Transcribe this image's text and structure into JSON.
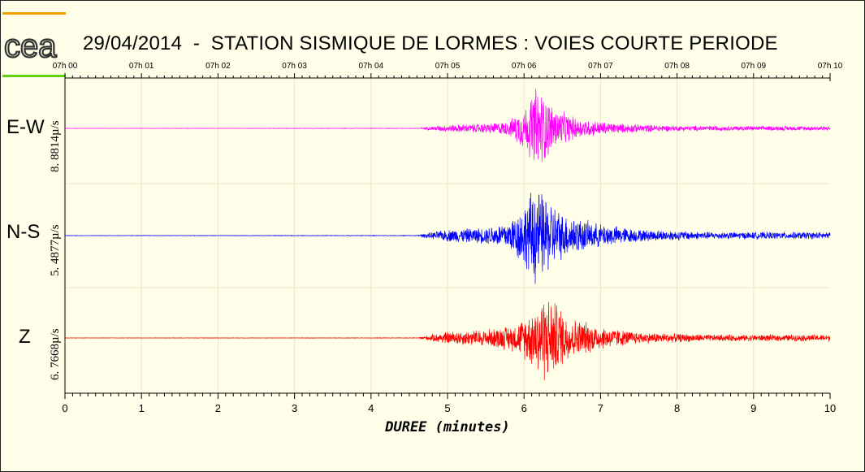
{
  "title": "29/04/2014  -  STATION SISMIQUE DE LORMES : VOIES COURTE PERIODE",
  "logo_text": "cea",
  "colors": {
    "background": "#fffee8",
    "logo_orange": "#f0a000",
    "logo_green": "#60d010",
    "grid": "#e8e8c8"
  },
  "chart_data": {
    "type": "line",
    "title": "29/04/2014  -  STATION SISMIQUE DE LORMES : VOIES COURTE PERIODE",
    "xlabel": "DUREE  (minutes)",
    "ylabel": "",
    "xlim": [
      0,
      10
    ],
    "x_ticks": [
      "0",
      "1",
      "2",
      "3",
      "4",
      "5",
      "6",
      "7",
      "8",
      "9",
      "10"
    ],
    "top_ticks": [
      "07h 00",
      "07h 01",
      "07h 02",
      "07h 03",
      "07h 04",
      "07h 05",
      "07h 06",
      "07h 07",
      "07h 08",
      "07h 09",
      "07h 10"
    ],
    "grid": true,
    "series": [
      {
        "name": "E-W",
        "color": "#ff00ff",
        "amplitude_label": "8. 8814µ/s",
        "envelope": [
          [
            0,
            0.004
          ],
          [
            4.6,
            0.006
          ],
          [
            4.7,
            0.03
          ],
          [
            5.0,
            0.08
          ],
          [
            5.5,
            0.11
          ],
          [
            5.8,
            0.16
          ],
          [
            6.05,
            0.55
          ],
          [
            6.15,
            0.95
          ],
          [
            6.25,
            0.8
          ],
          [
            6.4,
            0.45
          ],
          [
            6.7,
            0.22
          ],
          [
            7.2,
            0.11
          ],
          [
            8,
            0.06
          ],
          [
            9,
            0.05
          ],
          [
            10,
            0.05
          ]
        ]
      },
      {
        "name": "N-S",
        "color": "#0000ff",
        "amplitude_label": "5. 4877µ/s",
        "envelope": [
          [
            0,
            0.004
          ],
          [
            4.6,
            0.006
          ],
          [
            4.7,
            0.04
          ],
          [
            5.0,
            0.12
          ],
          [
            5.5,
            0.16
          ],
          [
            5.8,
            0.28
          ],
          [
            6.05,
            0.7
          ],
          [
            6.12,
            1.0
          ],
          [
            6.3,
            0.75
          ],
          [
            6.5,
            0.45
          ],
          [
            6.9,
            0.25
          ],
          [
            7.5,
            0.12
          ],
          [
            8.5,
            0.07
          ],
          [
            10,
            0.07
          ]
        ]
      },
      {
        "name": "Z",
        "color": "#ff0000",
        "amplitude_label": "6. 7668µ/s",
        "envelope": [
          [
            0,
            0.004
          ],
          [
            4.6,
            0.006
          ],
          [
            4.7,
            0.04
          ],
          [
            5.0,
            0.14
          ],
          [
            5.5,
            0.18
          ],
          [
            5.9,
            0.3
          ],
          [
            6.1,
            0.6
          ],
          [
            6.25,
            0.95
          ],
          [
            6.4,
            0.8
          ],
          [
            6.6,
            0.45
          ],
          [
            7.0,
            0.25
          ],
          [
            7.5,
            0.12
          ],
          [
            8.5,
            0.07
          ],
          [
            10,
            0.07
          ]
        ]
      }
    ]
  }
}
